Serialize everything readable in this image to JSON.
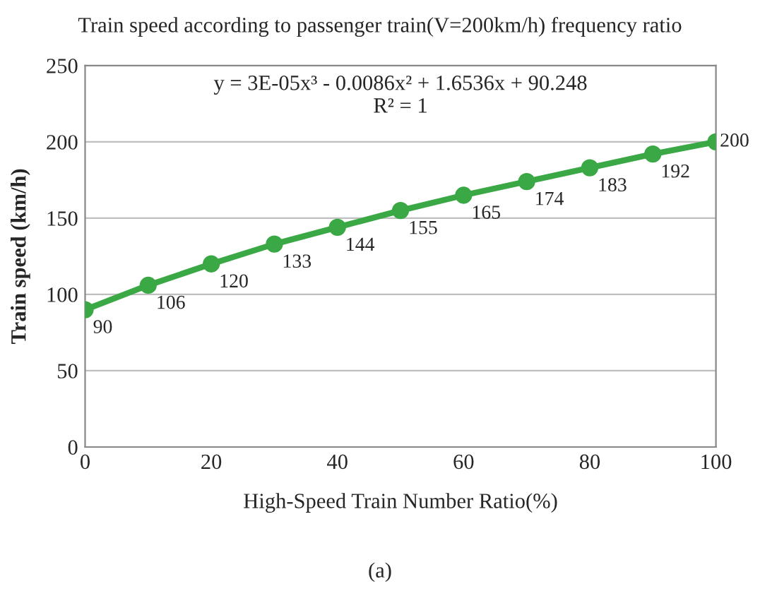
{
  "chart_data": {
    "type": "line",
    "title": "Train speed according to passenger train(V=200km/h) frequency ratio",
    "xlabel": "High-Speed Train Number Ratio(%)",
    "ylabel": "Train speed (km/h)",
    "x": [
      0,
      10,
      20,
      30,
      40,
      50,
      60,
      70,
      80,
      90,
      100
    ],
    "series": [
      {
        "color": "#3aa845",
        "values": [
          90,
          106,
          120,
          133,
          144,
          155,
          165,
          174,
          183,
          192,
          200
        ]
      }
    ],
    "data_labels": true,
    "marker": "circle",
    "line_style": "solid",
    "xlim": [
      0,
      100
    ],
    "xticks": [
      0,
      20,
      40,
      60,
      80,
      100
    ],
    "ylim": [
      0,
      250
    ],
    "yticks": [
      0,
      50,
      100,
      150,
      200,
      250
    ],
    "grid": "y",
    "legend": false,
    "annotations": [
      "y = 3E-05x³ - 0.0086x² + 1.6536x + 90.248\nR² = 1",
      "(a)"
    ]
  }
}
